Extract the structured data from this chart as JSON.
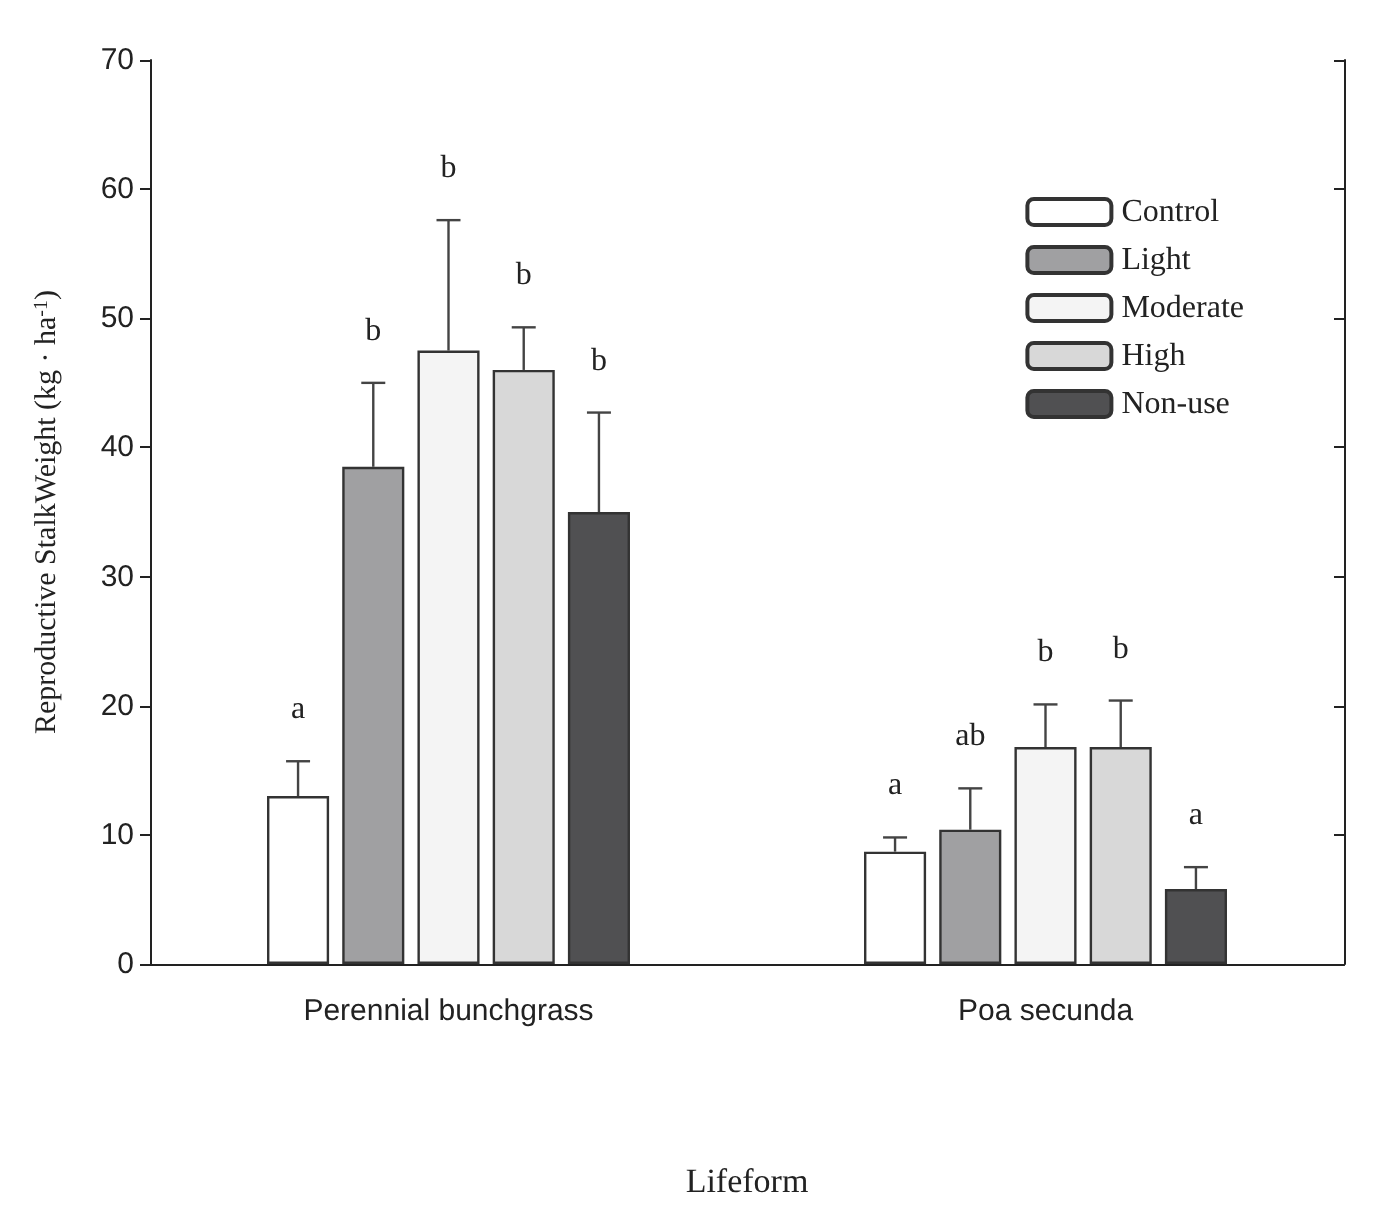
{
  "chart_data": {
    "type": "bar",
    "xlabel": "Lifeform",
    "ylabel": "Reproductive StalkWeight (kg · ha$^{-1}$)",
    "categories": [
      "Perennial bunchgrass",
      "Poa secunda"
    ],
    "series": [
      {
        "name": "Control",
        "color": "#ffffff",
        "values": [
          13,
          8.7
        ],
        "errors": [
          2.7,
          1.1
        ]
      },
      {
        "name": "Light",
        "color": "#a0a0a2",
        "values": [
          38.5,
          10.4
        ],
        "errors": [
          6.5,
          3.2
        ]
      },
      {
        "name": "Moderate",
        "color": "#f4f4f4",
        "values": [
          47.5,
          16.8
        ],
        "errors": [
          10.1,
          3.3
        ]
      },
      {
        "name": "High",
        "color": "#d8d8d8",
        "values": [
          46,
          16.8
        ],
        "errors": [
          3.3,
          3.6
        ]
      },
      {
        "name": "Non-use",
        "color": "#505052",
        "values": [
          35,
          5.8
        ],
        "errors": [
          7.7,
          1.7
        ]
      }
    ],
    "annotations": [
      "a",
      "b",
      "b",
      "b",
      "b",
      "a",
      "ab",
      "b",
      "b",
      "a"
    ],
    "ylim": [
      0,
      70
    ],
    "yticks": [
      0,
      10,
      20,
      30,
      40,
      50,
      60,
      70
    ],
    "grid": false,
    "legend": "top right"
  }
}
